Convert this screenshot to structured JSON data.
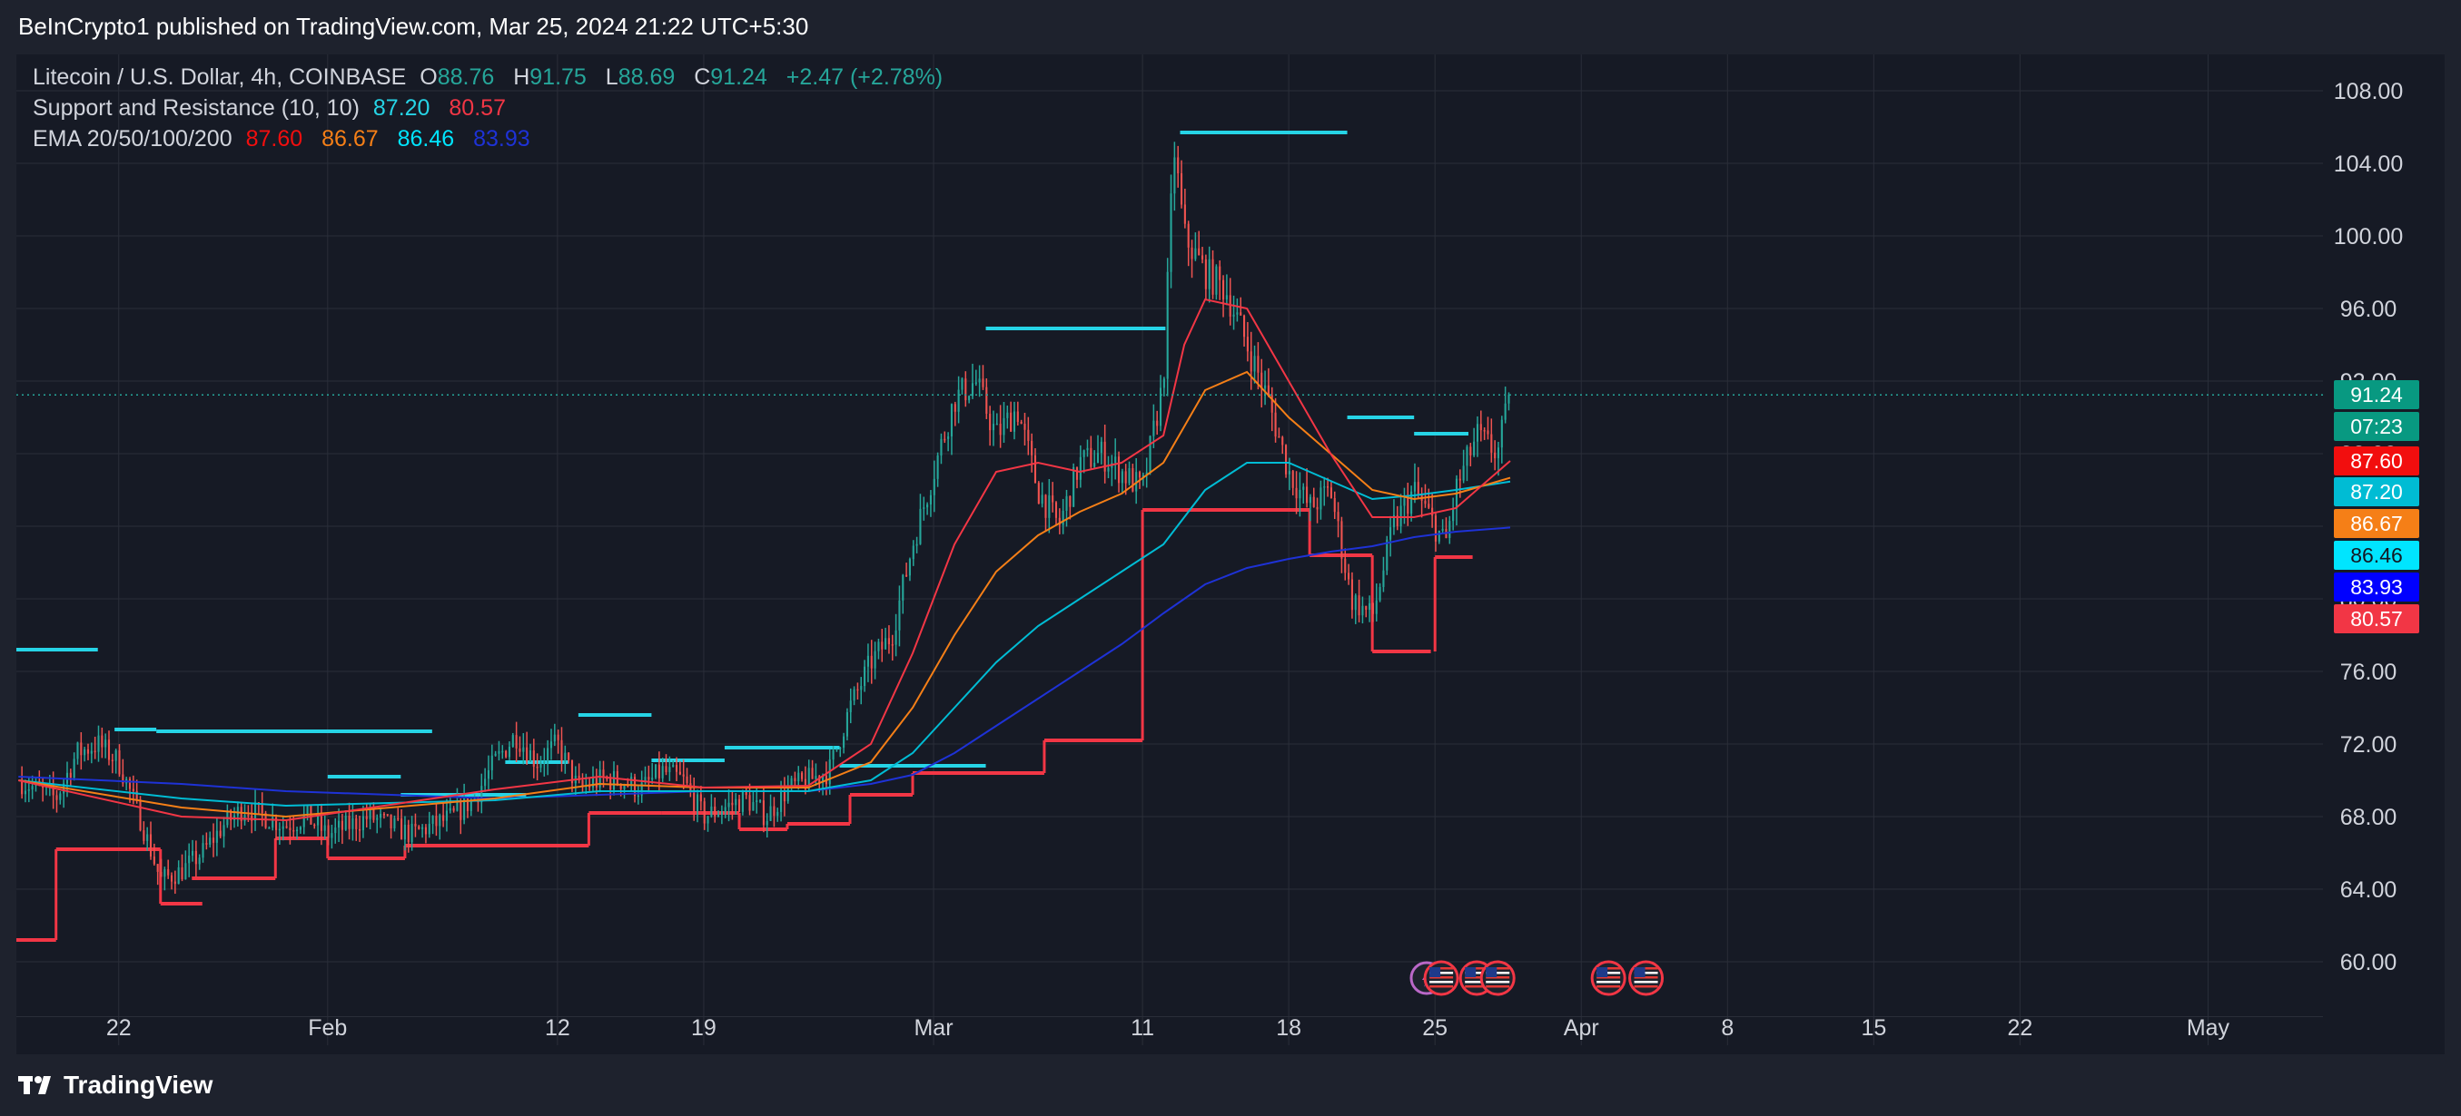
{
  "header": {
    "published_text": "BeInCrypto1 published on TradingView.com, Mar 25, 2024 21:22 UTC+5:30"
  },
  "legend": {
    "symbol": "Litecoin / U.S. Dollar, 4h, COINBASE",
    "o_label": "O",
    "o_value": "88.76",
    "h_label": "H",
    "h_value": "91.75",
    "l_label": "L",
    "l_value": "88.69",
    "c_label": "C",
    "c_value": "91.24",
    "change": "+2.47 (+2.78%)",
    "sr_label": "Support and Resistance (10, 10)",
    "sr_values": [
      "87.20",
      "80.57"
    ],
    "ema_label": "EMA 20/50/100/200",
    "ema_values": [
      "87.60",
      "86.67",
      "86.46",
      "83.93"
    ]
  },
  "price_tags": [
    {
      "value": "91.24",
      "bg": "#089981",
      "price": 91.24
    },
    {
      "value": "07:23",
      "bg": "#089981",
      "price": 89.5
    },
    {
      "value": "87.60",
      "bg": "#f20e0e",
      "price": 87.6
    },
    {
      "value": "87.20",
      "bg": "#00bcd4",
      "price": 85.9
    },
    {
      "value": "86.67",
      "bg": "#f57f17",
      "price": 84.15
    },
    {
      "value": "86.46",
      "bg": "#00e5ff",
      "price": 82.4
    },
    {
      "value": "83.93",
      "bg": "#0000ff",
      "price": 80.65
    },
    {
      "value": "80.57",
      "bg": "#f23645",
      "price": 78.9
    }
  ],
  "colors": {
    "up": "#26a69a",
    "down": "#ef5350",
    "ema20": "#f23645",
    "ema50": "#f57f17",
    "ema100": "#00bcd4",
    "ema200": "#1e32d6",
    "resistance": "#26d4e6",
    "support": "#f23645",
    "grid": "#2a2e39",
    "axis_text": "#d1d4dc"
  },
  "footer": {
    "brand": "TradingView",
    "logo_icon": "tradingview-logo-icon"
  },
  "chart_data": {
    "type": "candlestick",
    "title": "Litecoin / U.S. Dollar, 4h, COINBASE",
    "xlabel": "",
    "ylabel": "",
    "ylim": [
      57,
      110
    ],
    "y_ticks": [
      "60.00",
      "64.00",
      "68.00",
      "72.00",
      "76.00",
      "80.00",
      "84.00",
      "88.00",
      "92.00",
      "96.00",
      "100.00",
      "104.00",
      "108.00"
    ],
    "x_ticks": [
      {
        "label": "22",
        "day": 22
      },
      {
        "label": "Feb",
        "day": 32
      },
      {
        "label": "12",
        "day": 43
      },
      {
        "label": "19",
        "day": 50
      },
      {
        "label": "Mar",
        "day": 61
      },
      {
        "label": "11",
        "day": 71
      },
      {
        "label": "18",
        "day": 78
      },
      {
        "label": "25",
        "day": 85
      },
      {
        "label": "Apr",
        "day": 92
      },
      {
        "label": "8",
        "day": 99
      },
      {
        "label": "15",
        "day": 106
      },
      {
        "label": "22",
        "day": 113
      },
      {
        "label": "May",
        "day": 122
      }
    ],
    "xlim_days": [
      17.1,
      127.5
    ],
    "last_price": 91.24,
    "price_path": [
      [
        17.2,
        70.0
      ],
      [
        19.0,
        69.0
      ],
      [
        20.0,
        71.5
      ],
      [
        21.0,
        72.0
      ],
      [
        22.0,
        71.0
      ],
      [
        23.0,
        68.0
      ],
      [
        24.0,
        64.5
      ],
      [
        25.0,
        65.0
      ],
      [
        26.0,
        66.0
      ],
      [
        27.0,
        67.5
      ],
      [
        28.0,
        68.5
      ],
      [
        29.0,
        68.0
      ],
      [
        30.0,
        67.5
      ],
      [
        31.0,
        68.0
      ],
      [
        32.0,
        67.0
      ],
      [
        33.0,
        67.5
      ],
      [
        34.0,
        68.0
      ],
      [
        35.0,
        67.5
      ],
      [
        36.0,
        67.0
      ],
      [
        37.0,
        67.5
      ],
      [
        38.0,
        68.0
      ],
      [
        39.0,
        69.0
      ],
      [
        40.0,
        71.0
      ],
      [
        41.0,
        72.5
      ],
      [
        42.0,
        71.0
      ],
      [
        43.0,
        72.0
      ],
      [
        44.0,
        69.5
      ],
      [
        45.0,
        70.0
      ],
      [
        46.0,
        70.0
      ],
      [
        47.0,
        69.5
      ],
      [
        48.0,
        70.5
      ],
      [
        49.0,
        70.0
      ],
      [
        50.0,
        68.0
      ],
      [
        51.0,
        68.5
      ],
      [
        52.0,
        69.0
      ],
      [
        53.0,
        68.0
      ],
      [
        54.0,
        69.5
      ],
      [
        55.0,
        70.0
      ],
      [
        56.0,
        70.5
      ],
      [
        57.0,
        74.0
      ],
      [
        58.0,
        76.5
      ],
      [
        59.0,
        78.0
      ],
      [
        60.0,
        83.0
      ],
      [
        61.0,
        87.0
      ],
      [
        62.0,
        91.0
      ],
      [
        63.0,
        92.0
      ],
      [
        64.0,
        89.0
      ],
      [
        65.0,
        90.5
      ],
      [
        66.0,
        86.0
      ],
      [
        67.0,
        84.0
      ],
      [
        68.0,
        87.5
      ],
      [
        69.0,
        88.0
      ],
      [
        70.0,
        87.0
      ],
      [
        71.0,
        86.0
      ],
      [
        72.0,
        92.0
      ],
      [
        72.5,
        105.0
      ],
      [
        73.0,
        100.0
      ],
      [
        74.0,
        98.0
      ],
      [
        75.0,
        97.0
      ],
      [
        76.0,
        94.0
      ],
      [
        77.0,
        91.0
      ],
      [
        78.0,
        87.0
      ],
      [
        79.0,
        85.0
      ],
      [
        80.0,
        86.0
      ],
      [
        81.0,
        80.0
      ],
      [
        82.0,
        79.0
      ],
      [
        83.0,
        84.0
      ],
      [
        84.0,
        86.0
      ],
      [
        85.0,
        84.0
      ],
      [
        85.5,
        83.0
      ],
      [
        86.0,
        86.0
      ],
      [
        87.0,
        89.0
      ],
      [
        88.0,
        88.0
      ],
      [
        88.6,
        91.24
      ]
    ],
    "ema20": [
      [
        17.2,
        70.0
      ],
      [
        25,
        68.0
      ],
      [
        30,
        67.8
      ],
      [
        40,
        69.5
      ],
      [
        45,
        70.2
      ],
      [
        50,
        69.6
      ],
      [
        55,
        69.7
      ],
      [
        58,
        72.0
      ],
      [
        60,
        77.0
      ],
      [
        62,
        83.0
      ],
      [
        64,
        87.0
      ],
      [
        66,
        87.5
      ],
      [
        68,
        87.0
      ],
      [
        70,
        87.5
      ],
      [
        72,
        89.0
      ],
      [
        73,
        94.0
      ],
      [
        74,
        96.5
      ],
      [
        76,
        96.0
      ],
      [
        78,
        92.0
      ],
      [
        80,
        88.0
      ],
      [
        82,
        84.5
      ],
      [
        84,
        84.5
      ],
      [
        86,
        85.0
      ],
      [
        88.6,
        87.6
      ]
    ],
    "ema50": [
      [
        17.2,
        70.0
      ],
      [
        25,
        68.5
      ],
      [
        30,
        68.0
      ],
      [
        40,
        69.0
      ],
      [
        45,
        69.8
      ],
      [
        50,
        69.6
      ],
      [
        55,
        69.6
      ],
      [
        58,
        71.0
      ],
      [
        60,
        74.0
      ],
      [
        62,
        78.0
      ],
      [
        64,
        81.5
      ],
      [
        66,
        83.5
      ],
      [
        68,
        84.8
      ],
      [
        70,
        85.8
      ],
      [
        72,
        87.5
      ],
      [
        74,
        91.5
      ],
      [
        76,
        92.5
      ],
      [
        78,
        90.0
      ],
      [
        80,
        88.0
      ],
      [
        82,
        86.0
      ],
      [
        84,
        85.5
      ],
      [
        86,
        85.8
      ],
      [
        88.6,
        86.67
      ]
    ],
    "ema100": [
      [
        17.2,
        70.0
      ],
      [
        25,
        69.0
      ],
      [
        30,
        68.6
      ],
      [
        40,
        68.9
      ],
      [
        45,
        69.4
      ],
      [
        50,
        69.4
      ],
      [
        55,
        69.4
      ],
      [
        58,
        70.0
      ],
      [
        60,
        71.5
      ],
      [
        62,
        74.0
      ],
      [
        64,
        76.5
      ],
      [
        66,
        78.5
      ],
      [
        68,
        80.0
      ],
      [
        70,
        81.5
      ],
      [
        72,
        83.0
      ],
      [
        74,
        86.0
      ],
      [
        76,
        87.5
      ],
      [
        78,
        87.5
      ],
      [
        80,
        86.5
      ],
      [
        82,
        85.5
      ],
      [
        84,
        85.7
      ],
      [
        86,
        86.0
      ],
      [
        88.6,
        86.46
      ]
    ],
    "ema200": [
      [
        17.2,
        70.2
      ],
      [
        25,
        69.8
      ],
      [
        30,
        69.4
      ],
      [
        40,
        69.0
      ],
      [
        45,
        69.2
      ],
      [
        50,
        69.4
      ],
      [
        55,
        69.4
      ],
      [
        58,
        69.8
      ],
      [
        60,
        70.3
      ],
      [
        62,
        71.5
      ],
      [
        64,
        73.0
      ],
      [
        66,
        74.5
      ],
      [
        68,
        76.0
      ],
      [
        70,
        77.5
      ],
      [
        72,
        79.2
      ],
      [
        74,
        80.8
      ],
      [
        76,
        81.7
      ],
      [
        78,
        82.2
      ],
      [
        80,
        82.6
      ],
      [
        82,
        82.9
      ],
      [
        84,
        83.4
      ],
      [
        86,
        83.7
      ],
      [
        88.6,
        83.93
      ]
    ],
    "resistance_segments": [
      [
        17.1,
        21.0,
        77.2
      ],
      [
        21.8,
        23.8,
        72.8
      ],
      [
        23.8,
        37.0,
        72.7
      ],
      [
        32.0,
        35.5,
        70.2
      ],
      [
        35.5,
        41.5,
        69.2
      ],
      [
        40.5,
        43.5,
        71.0
      ],
      [
        44.0,
        47.5,
        73.6
      ],
      [
        47.5,
        51.0,
        71.1
      ],
      [
        51.0,
        56.5,
        71.8
      ],
      [
        56.5,
        60.0,
        70.8
      ],
      [
        60.0,
        63.5,
        70.8
      ],
      [
        63.5,
        72.1,
        94.9
      ],
      [
        72.8,
        80.8,
        105.7
      ],
      [
        80.8,
        84.0,
        90.0
      ],
      [
        84.0,
        86.6,
        89.1
      ]
    ],
    "support_segments": [
      [
        17.1,
        19.0,
        61.2
      ],
      [
        19.0,
        24.0,
        66.2
      ],
      [
        24.0,
        26.0,
        63.2
      ],
      [
        25.5,
        29.5,
        64.6
      ],
      [
        29.5,
        32.0,
        66.8
      ],
      [
        32.0,
        35.7,
        65.7
      ],
      [
        35.7,
        44.5,
        66.4
      ],
      [
        44.5,
        48.0,
        68.2
      ],
      [
        48.0,
        51.7,
        68.2
      ],
      [
        51.7,
        54.0,
        67.3
      ],
      [
        54.0,
        57.0,
        67.6
      ],
      [
        57.0,
        60.0,
        69.2
      ],
      [
        60.0,
        66.3,
        70.4
      ],
      [
        66.3,
        71.0,
        72.2
      ],
      [
        71.0,
        79.0,
        84.9
      ],
      [
        79.0,
        82.0,
        82.4
      ],
      [
        82.0,
        84.8,
        77.1
      ],
      [
        85.0,
        86.8,
        82.3
      ]
    ],
    "event_markers": [
      {
        "day": 84.6,
        "kind": "split",
        "icon": "lightning-icon"
      },
      {
        "day": 85.3,
        "kind": "us-event",
        "icon": "us-flag-icon"
      },
      {
        "day": 87.0,
        "kind": "us-event",
        "icon": "us-flag-icon"
      },
      {
        "day": 88.0,
        "kind": "us-event",
        "icon": "us-flag-icon"
      },
      {
        "day": 93.3,
        "kind": "us-event",
        "icon": "us-flag-icon"
      },
      {
        "day": 95.1,
        "kind": "us-event",
        "icon": "us-flag-icon"
      }
    ]
  }
}
